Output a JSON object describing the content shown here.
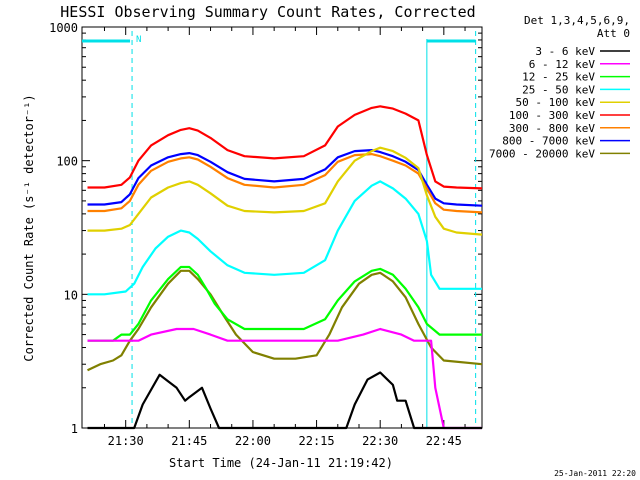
{
  "chart_data": {
    "type": "line",
    "title": "HESSI Observing Summary Count Rates, Corrected",
    "xlabel": "Start Time (24-Jan-11 21:19:42)",
    "ylabel": "Corrected Count Rate (s⁻¹ detector⁻¹)",
    "yscale": "log",
    "ylim": [
      1,
      1000
    ],
    "xlim_minutes_of_day": [
      1279.7,
      1374.0
    ],
    "x_ticks": [
      {
        "label": "21:30",
        "min": 1290
      },
      {
        "label": "21:45",
        "min": 1305
      },
      {
        "label": "22:00",
        "min": 1320
      },
      {
        "label": "22:15",
        "min": 1335
      },
      {
        "label": "22:30",
        "min": 1350
      },
      {
        "label": "22:45",
        "min": 1365
      }
    ],
    "y_ticks": [
      {
        "label": "1",
        "v": 1
      },
      {
        "label": "10",
        "v": 10
      },
      {
        "label": "100",
        "v": 100
      },
      {
        "label": "1000",
        "v": 1000
      }
    ],
    "grid": false,
    "legend_position": "right",
    "legend_header": [
      "Det 1,3,4,5,6,9,",
      "Att 0"
    ],
    "night_marks": [
      1291.5,
      1361.0,
      1372.5
    ],
    "night_label": "N",
    "timestamp": "25-Jan-2011 22:20",
    "series": [
      {
        "name": "3 - 6 keV",
        "color": "#000000",
        "x": [
          1281,
          1286,
          1290,
          1292,
          1294,
          1298,
          1302,
          1304,
          1305,
          1308,
          1310,
          1312,
          1314,
          1320,
          1330,
          1342,
          1344,
          1347,
          1350,
          1353,
          1354,
          1356,
          1358,
          1360,
          1362,
          1364,
          1368,
          1374
        ],
        "y": [
          1,
          1,
          1,
          1,
          1.5,
          2.5,
          2,
          1.6,
          1.7,
          2,
          1.4,
          1,
          1,
          1,
          1,
          1,
          1.5,
          2.3,
          2.6,
          2.1,
          1.6,
          1.6,
          1,
          1,
          1,
          1,
          1,
          1
        ]
      },
      {
        "name": "6 - 12 keV",
        "color": "#ff00ff",
        "x": [
          1281,
          1285,
          1289,
          1290,
          1293,
          1296,
          1302,
          1306,
          1310,
          1314,
          1320,
          1328,
          1335,
          1340,
          1346,
          1350,
          1355,
          1358,
          1360,
          1362,
          1363,
          1365,
          1370,
          1374
        ],
        "y": [
          4.5,
          4.5,
          4.5,
          4.5,
          4.5,
          5,
          5.5,
          5.5,
          5,
          4.5,
          4.5,
          4.5,
          4.5,
          4.5,
          5,
          5.5,
          5,
          4.5,
          4.5,
          4.5,
          2,
          1,
          1,
          1
        ]
      },
      {
        "name": "12 - 25 keV",
        "color": "#00ff00",
        "x": [
          1281,
          1287,
          1289,
          1291,
          1293,
          1296,
          1300,
          1303,
          1305,
          1307,
          1309,
          1311,
          1314,
          1318,
          1325,
          1332,
          1337,
          1340,
          1344,
          1348,
          1350,
          1353,
          1356,
          1359,
          1361,
          1364,
          1368,
          1374
        ],
        "y": [
          4.5,
          4.5,
          5,
          5,
          6,
          9,
          13,
          16,
          16,
          14,
          11,
          8.5,
          6.5,
          5.5,
          5.5,
          5.5,
          6.5,
          9,
          12.5,
          15,
          15.5,
          14,
          11,
          8,
          6,
          5,
          5,
          5
        ]
      },
      {
        "name": "25 - 50 keV",
        "color": "#00ffff",
        "x": [
          1281,
          1285,
          1290,
          1292,
          1294,
          1297,
          1300,
          1303,
          1305,
          1307,
          1310,
          1314,
          1318,
          1325,
          1332,
          1337,
          1340,
          1344,
          1348,
          1350,
          1353,
          1356,
          1359,
          1361,
          1362,
          1364,
          1368,
          1374
        ],
        "y": [
          10,
          10,
          10.5,
          12,
          16,
          22,
          27,
          30,
          29,
          26,
          21,
          16.5,
          14.5,
          14,
          14.5,
          18,
          30,
          50,
          65,
          70,
          62,
          52,
          40,
          25,
          14,
          11,
          11,
          11
        ]
      },
      {
        "name": "50 - 100 keV",
        "color": "#e0d000",
        "x": [
          1281,
          1285,
          1289,
          1291,
          1293,
          1296,
          1300,
          1303,
          1305,
          1307,
          1310,
          1314,
          1318,
          1325,
          1332,
          1337,
          1340,
          1344,
          1348,
          1350,
          1353,
          1356,
          1359,
          1361,
          1363,
          1365,
          1368,
          1374
        ],
        "y": [
          30,
          30,
          31,
          33,
          40,
          53,
          63,
          68,
          70,
          66,
          57,
          46,
          42,
          41,
          42,
          48,
          70,
          100,
          118,
          125,
          118,
          105,
          88,
          55,
          38,
          31,
          29,
          28
        ]
      },
      {
        "name": "100 - 300 keV",
        "color": "#ff0000",
        "x": [
          1281,
          1285,
          1289,
          1291,
          1293,
          1296,
          1300,
          1303,
          1305,
          1307,
          1310,
          1314,
          1318,
          1325,
          1332,
          1337,
          1340,
          1344,
          1348,
          1350,
          1353,
          1356,
          1359,
          1361,
          1363,
          1365,
          1368,
          1374
        ],
        "y": [
          63,
          63,
          66,
          75,
          100,
          130,
          155,
          170,
          175,
          168,
          148,
          120,
          108,
          104,
          108,
          130,
          180,
          220,
          248,
          255,
          245,
          225,
          200,
          110,
          70,
          64,
          63,
          62
        ]
      },
      {
        "name": "300 - 800 keV",
        "color": "#ff8000",
        "x": [
          1281,
          1285,
          1289,
          1291,
          1293,
          1296,
          1300,
          1303,
          1305,
          1307,
          1310,
          1314,
          1318,
          1325,
          1332,
          1337,
          1340,
          1344,
          1348,
          1350,
          1353,
          1356,
          1359,
          1361,
          1363,
          1365,
          1368,
          1374
        ],
        "y": [
          42,
          42,
          44,
          50,
          66,
          84,
          98,
          104,
          106,
          102,
          90,
          74,
          66,
          63,
          66,
          78,
          98,
          110,
          112,
          108,
          100,
          92,
          80,
          62,
          48,
          43,
          42,
          41
        ]
      },
      {
        "name": "800 - 7000 keV",
        "color": "#0000ff",
        "x": [
          1281,
          1285,
          1289,
          1291,
          1293,
          1296,
          1300,
          1303,
          1305,
          1307,
          1310,
          1314,
          1318,
          1325,
          1332,
          1337,
          1340,
          1344,
          1348,
          1350,
          1353,
          1356,
          1359,
          1361,
          1363,
          1365,
          1368,
          1374
        ],
        "y": [
          47,
          47,
          49,
          56,
          74,
          92,
          106,
          112,
          114,
          110,
          98,
          82,
          73,
          70,
          73,
          86,
          106,
          118,
          120,
          116,
          108,
          98,
          85,
          66,
          52,
          48,
          47,
          46
        ]
      },
      {
        "name": "7000 - 20000 keV",
        "color": "#808000",
        "x": [
          1281,
          1284,
          1287,
          1289,
          1291,
          1293,
          1296,
          1300,
          1303,
          1305,
          1307,
          1310,
          1313,
          1316,
          1320,
          1325,
          1330,
          1335,
          1338,
          1341,
          1345,
          1348,
          1350,
          1353,
          1356,
          1359,
          1362,
          1365,
          1374
        ],
        "y": [
          2.7,
          3,
          3.2,
          3.5,
          4.5,
          5.5,
          8,
          12,
          15,
          15,
          13,
          10,
          7,
          5,
          3.7,
          3.3,
          3.3,
          3.5,
          5,
          8,
          12,
          14,
          14.5,
          12.5,
          9.5,
          6,
          4,
          3.2,
          3
        ]
      }
    ]
  }
}
